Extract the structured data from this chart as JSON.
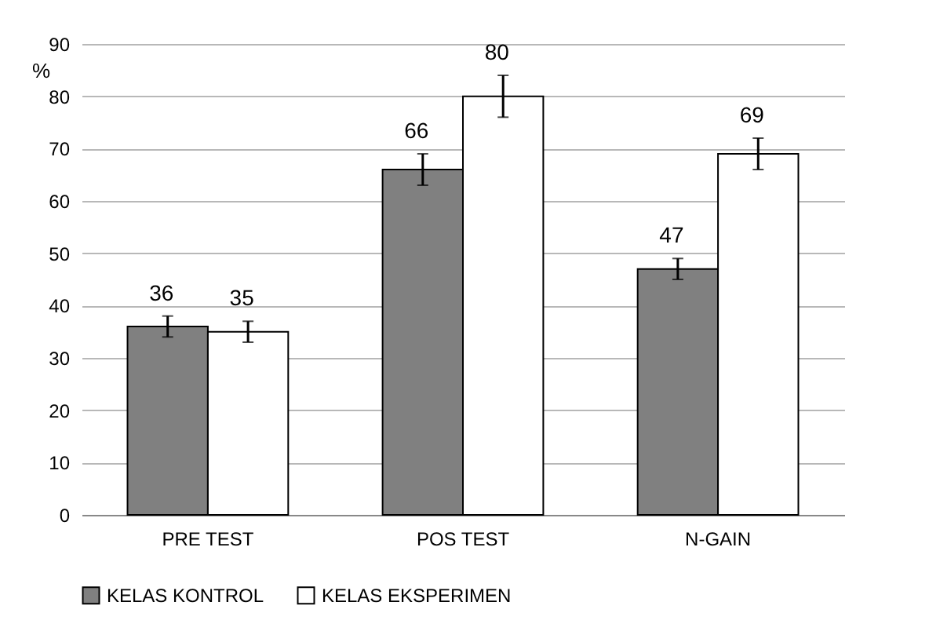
{
  "chart_data": {
    "type": "bar",
    "ylabel": "%",
    "categories": [
      "PRE TEST",
      "POS TEST",
      "N-GAIN"
    ],
    "series": [
      {
        "name": "KELAS KONTROL",
        "color": "#808080",
        "values": [
          36,
          66,
          47
        ],
        "errors": [
          2,
          3,
          2
        ]
      },
      {
        "name": "KELAS EKSPERIMEN",
        "color": "#ffffff",
        "values": [
          35,
          80,
          69
        ],
        "errors": [
          2,
          4,
          3
        ]
      }
    ],
    "ylim": [
      0,
      90
    ],
    "yticks": [
      0,
      10,
      20,
      30,
      40,
      50,
      60,
      70,
      80,
      90
    ],
    "grid": "y",
    "legend": "bottom",
    "data_labels": true
  }
}
